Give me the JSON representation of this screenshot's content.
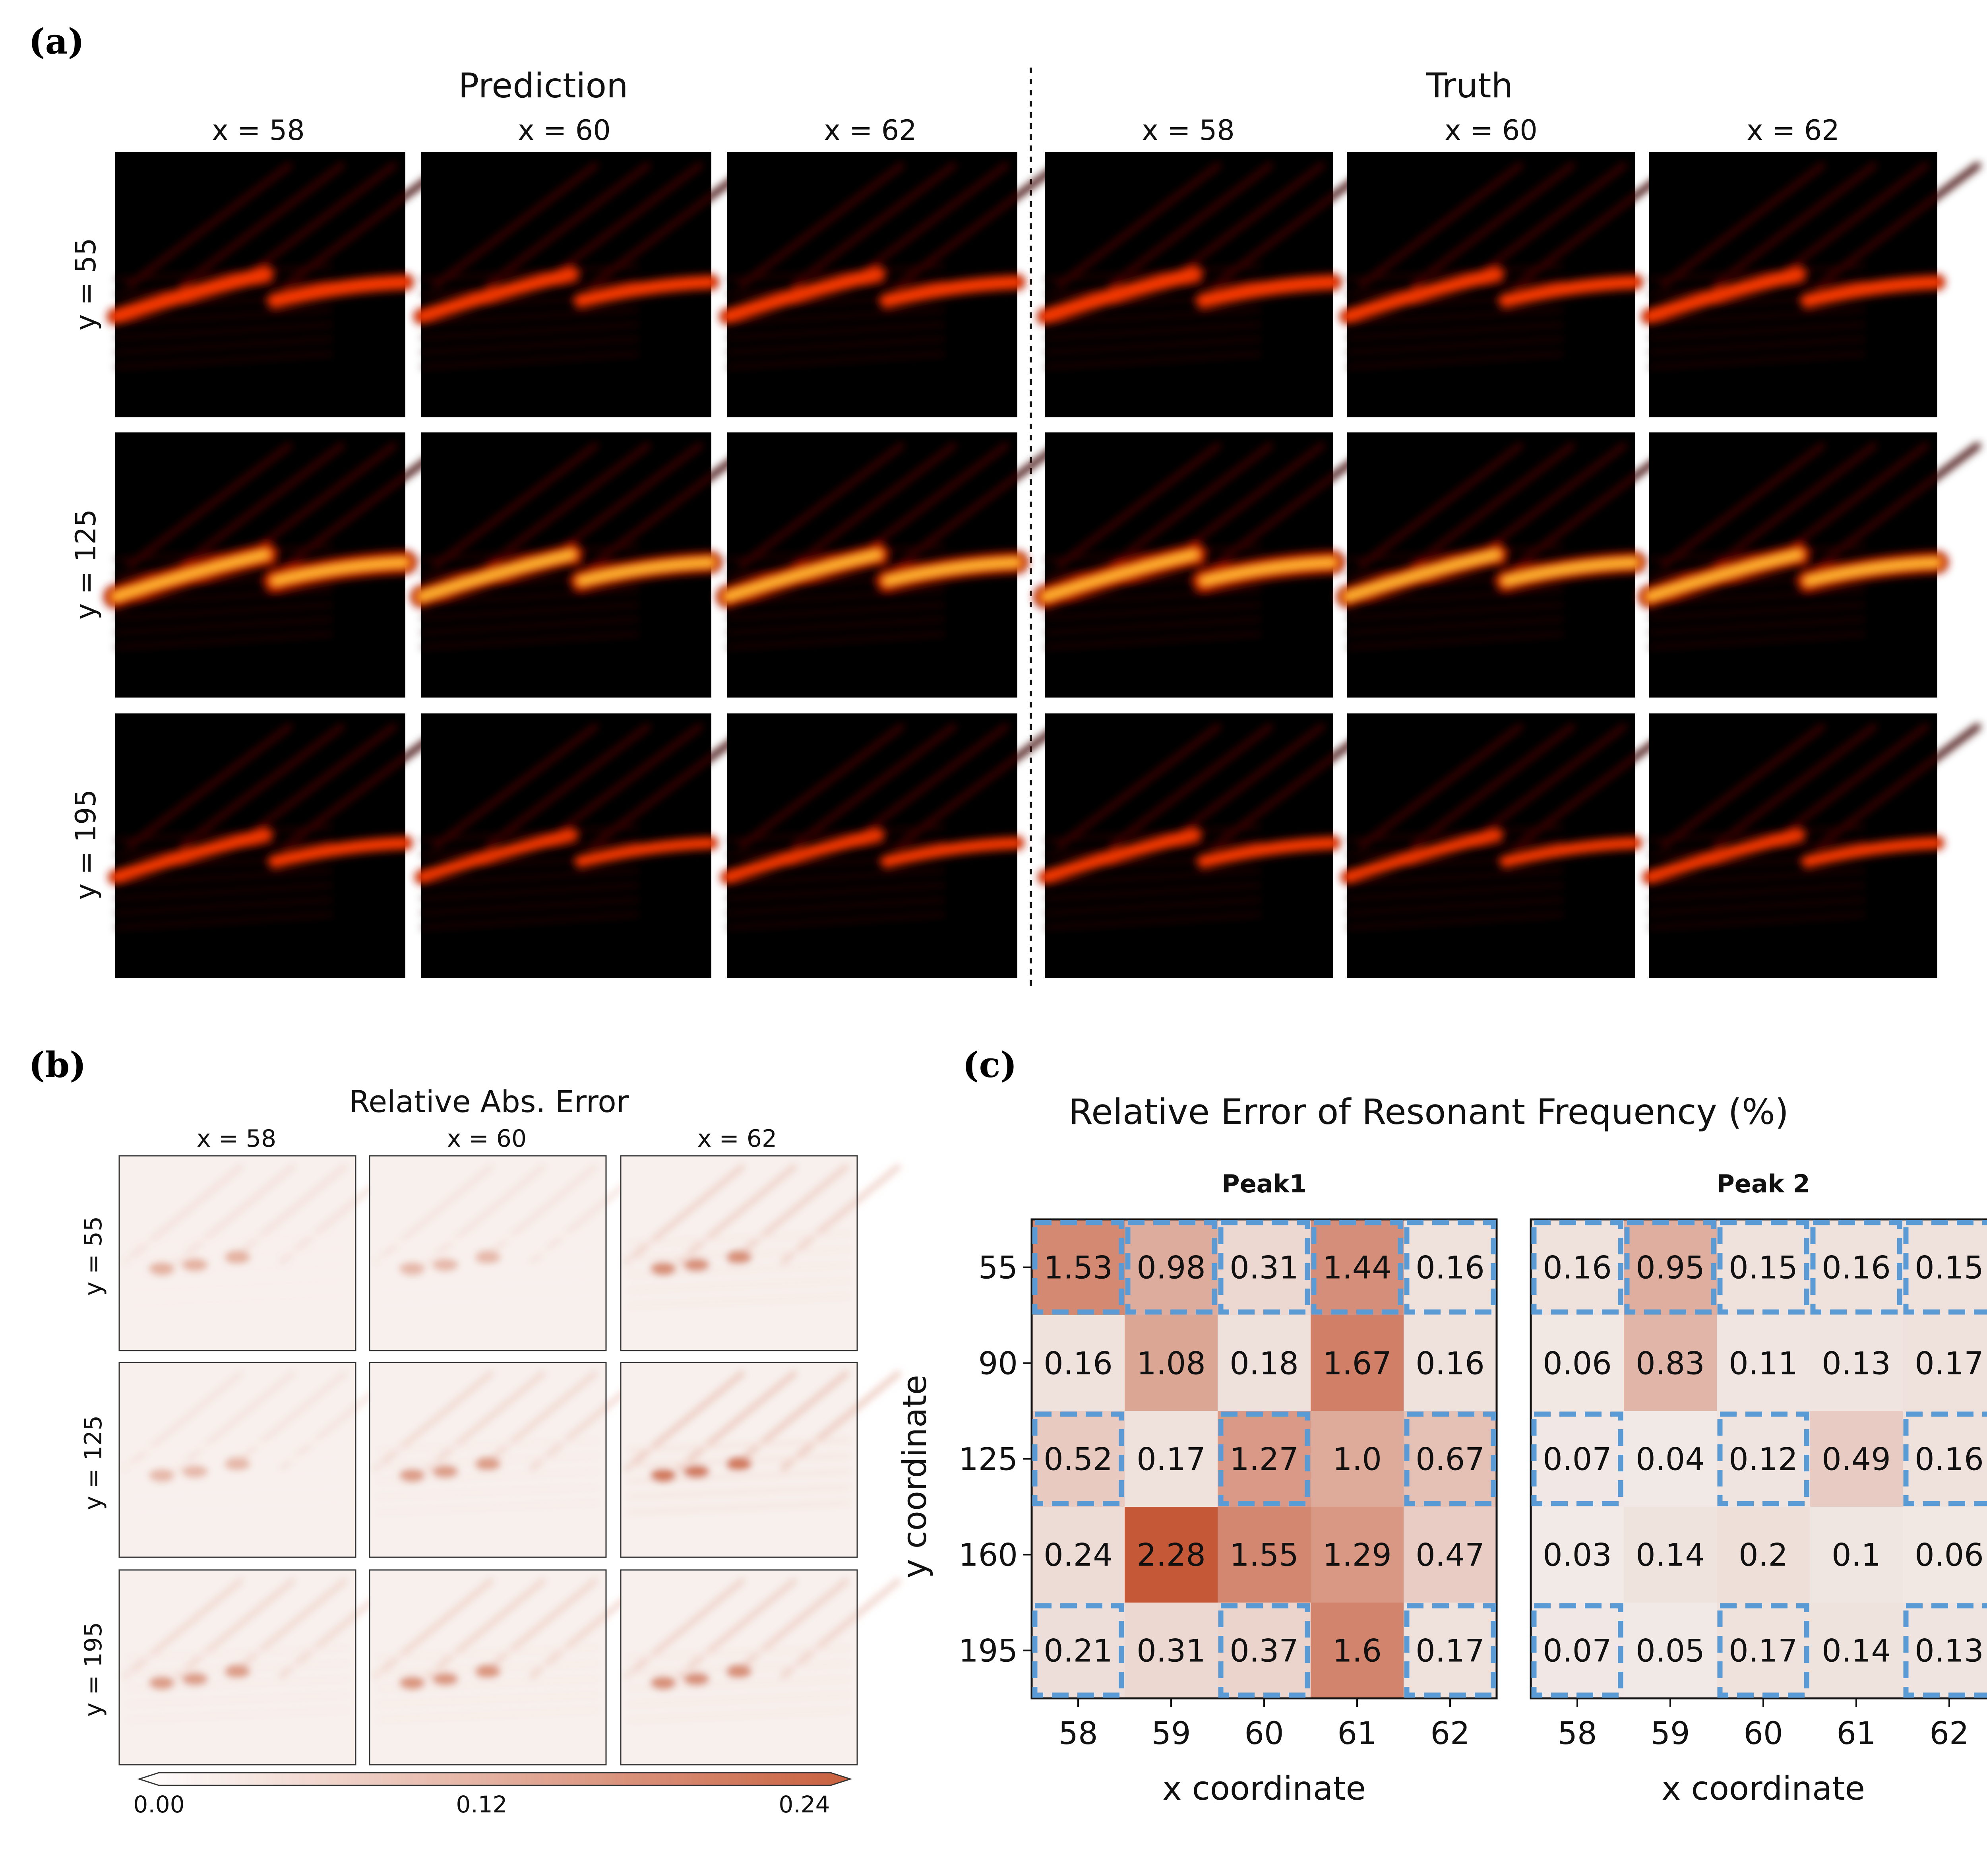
{
  "panels": {
    "a": "(a)",
    "b": "(b)",
    "c": "(c)"
  },
  "panel_a": {
    "groups": [
      "Prediction",
      "Truth"
    ],
    "col_labels": [
      "x = 58",
      "x = 60",
      "x = 62"
    ],
    "row_labels": [
      "y = 55",
      "y = 125",
      "y = 195"
    ],
    "colormap": [
      "#000000",
      "#3a0000",
      "#b21a00",
      "#ff3c00",
      "#ffd23a",
      "#ffffa0"
    ]
  },
  "panel_b": {
    "title": "Relative Abs. Error",
    "col_labels": [
      "x = 58",
      "x = 60",
      "x = 62"
    ],
    "row_labels": [
      "y = 55",
      "y = 125",
      "y = 195"
    ],
    "colorbar": {
      "ticks": [
        "0.00",
        "0.12",
        "0.24"
      ],
      "min": 0.0,
      "max": 0.24,
      "low_color": "#ffffff",
      "high_color": "#c8603e"
    }
  },
  "chart_data": [
    {
      "type": "heatmap",
      "title": "Relative Error of Resonant Frequency (%)",
      "subtitle": "Peak1",
      "xlabel": "x coordinate",
      "ylabel": "y coordinate",
      "x": [
        "58",
        "59",
        "60",
        "61",
        "62"
      ],
      "y": [
        "55",
        "90",
        "125",
        "160",
        "195"
      ],
      "values": [
        [
          "1.53",
          "0.98",
          "0.31",
          "1.44",
          "0.16"
        ],
        [
          "0.16",
          "1.08",
          "0.18",
          "1.67",
          "0.16"
        ],
        [
          "0.52",
          "0.17",
          "1.27",
          "1.0",
          "0.67"
        ],
        [
          "0.24",
          "2.28",
          "1.55",
          "1.29",
          "0.47"
        ],
        [
          "0.21",
          "0.31",
          "0.37",
          "1.6",
          "0.17"
        ]
      ],
      "vmax": 2.4,
      "highlighted_cells": [
        [
          0,
          0
        ],
        [
          0,
          1
        ],
        [
          0,
          2
        ],
        [
          0,
          3
        ],
        [
          0,
          4
        ],
        [
          2,
          0
        ],
        [
          2,
          2
        ],
        [
          2,
          4
        ],
        [
          4,
          0
        ],
        [
          4,
          2
        ],
        [
          4,
          4
        ]
      ]
    },
    {
      "type": "heatmap",
      "title": "Relative Error of Resonant Frequency (%)",
      "subtitle": "Peak 2",
      "xlabel": "x coordinate",
      "ylabel": "y coordinate",
      "x": [
        "58",
        "59",
        "60",
        "61",
        "62"
      ],
      "y": [
        "55",
        "90",
        "125",
        "160",
        "195"
      ],
      "values": [
        [
          "0.16",
          "0.95",
          "0.15",
          "0.16",
          "0.15"
        ],
        [
          "0.06",
          "0.83",
          "0.11",
          "0.13",
          "0.17"
        ],
        [
          "0.07",
          "0.04",
          "0.12",
          "0.49",
          "0.16"
        ],
        [
          "0.03",
          "0.14",
          "0.2",
          "0.1",
          "0.06"
        ],
        [
          "0.07",
          "0.05",
          "0.17",
          "0.14",
          "0.13"
        ]
      ],
      "vmax": 2.4,
      "highlighted_cells": [
        [
          0,
          0
        ],
        [
          0,
          1
        ],
        [
          0,
          2
        ],
        [
          0,
          3
        ],
        [
          0,
          4
        ],
        [
          2,
          0
        ],
        [
          2,
          2
        ],
        [
          2,
          4
        ],
        [
          4,
          0
        ],
        [
          4,
          2
        ],
        [
          4,
          4
        ]
      ]
    }
  ],
  "colors": {
    "cell_low": "#f2ece9",
    "cell_high": "#c2502e",
    "highlight": "#5b9bd5",
    "text": "#111111"
  }
}
